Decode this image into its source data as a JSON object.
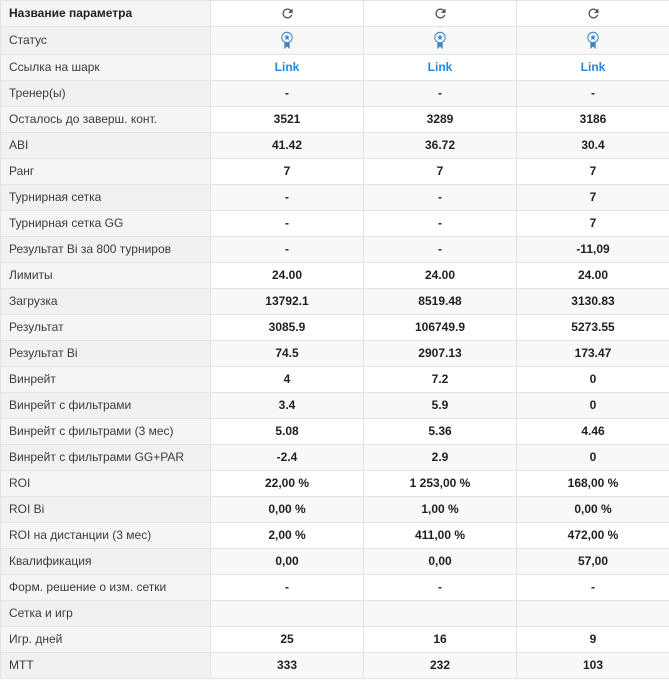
{
  "colors": {
    "link_blue": "#1e88e5",
    "badge_blue": "#3d85c6",
    "icon_gray": "#4a4a4a",
    "border": "#e3e3e3",
    "label_bg": "#f5f5f5",
    "stripe_bg": "#f8f8f8"
  },
  "table": {
    "column_count": 3,
    "rows": [
      {
        "label": "Название параметра",
        "kind": "refresh",
        "header": true
      },
      {
        "label": "Статус",
        "kind": "badge"
      },
      {
        "label": "Ссылка на шарк",
        "kind": "link",
        "values": [
          "Link",
          "Link",
          "Link"
        ]
      },
      {
        "label": "Тренер(ы)",
        "kind": "text",
        "values": [
          "-",
          "-",
          "-"
        ]
      },
      {
        "label": "Осталось до заверш. конт.",
        "kind": "text",
        "values": [
          "3521",
          "3289",
          "3186"
        ]
      },
      {
        "label": "ABI",
        "kind": "text",
        "values": [
          "41.42",
          "36.72",
          "30.4"
        ]
      },
      {
        "label": "Ранг",
        "kind": "text",
        "values": [
          "7",
          "7",
          "7"
        ]
      },
      {
        "label": "Турнирная сетка",
        "kind": "text",
        "values": [
          "-",
          "-",
          "7"
        ]
      },
      {
        "label": "Турнирная сетка GG",
        "kind": "text",
        "values": [
          "-",
          "-",
          "7"
        ]
      },
      {
        "label": "Результат Bi за 800 турниров",
        "kind": "text",
        "values": [
          "-",
          "-",
          "-11,09"
        ]
      },
      {
        "label": "Лимиты",
        "kind": "text",
        "values": [
          "24.00",
          "24.00",
          "24.00"
        ]
      },
      {
        "label": "Загрузка",
        "kind": "text",
        "values": [
          "13792.1",
          "8519.48",
          "3130.83"
        ]
      },
      {
        "label": "Результат",
        "kind": "text",
        "values": [
          "3085.9",
          "106749.9",
          "5273.55"
        ]
      },
      {
        "label": "Результат Bi",
        "kind": "text",
        "values": [
          "74.5",
          "2907.13",
          "173.47"
        ]
      },
      {
        "label": "Винрейт",
        "kind": "text",
        "values": [
          "4",
          "7.2",
          "0"
        ]
      },
      {
        "label": "Винрейт с фильтрами",
        "kind": "text",
        "values": [
          "3.4",
          "5.9",
          "0"
        ]
      },
      {
        "label": "Винрейт с фильтрами (3 мес)",
        "kind": "text",
        "values": [
          "5.08",
          "5.36",
          "4.46"
        ]
      },
      {
        "label": "Винрейт с фильтрами GG+PAR",
        "kind": "text",
        "values": [
          "-2.4",
          "2.9",
          "0"
        ]
      },
      {
        "label": "ROI",
        "kind": "text",
        "values": [
          "22,00 %",
          "1 253,00 %",
          "168,00 %"
        ]
      },
      {
        "label": "ROI Bi",
        "kind": "text",
        "values": [
          "0,00 %",
          "1,00 %",
          "0,00 %"
        ]
      },
      {
        "label": "ROI на дистанции (3 мес)",
        "kind": "text",
        "values": [
          "2,00 %",
          "411,00 %",
          "472,00 %"
        ]
      },
      {
        "label": "Квалификация",
        "kind": "text",
        "values": [
          "0,00",
          "0,00",
          "57,00"
        ]
      },
      {
        "label": "Форм. решение о изм. сетки",
        "kind": "text",
        "values": [
          "-",
          "-",
          "-"
        ]
      },
      {
        "label": "Сетка и игр",
        "kind": "text",
        "values": [
          "",
          "",
          ""
        ]
      },
      {
        "label": "Игр. дней",
        "kind": "text",
        "values": [
          "25",
          "16",
          "9"
        ]
      },
      {
        "label": "МТТ",
        "kind": "text",
        "values": [
          "333",
          "232",
          "103"
        ]
      }
    ]
  }
}
